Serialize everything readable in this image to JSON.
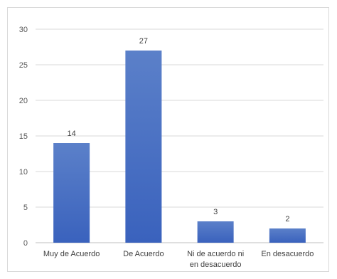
{
  "chart_data": {
    "type": "bar",
    "categories": [
      "Muy de Acuerdo",
      "De Acuerdo",
      "Ni de acuerdo ni en desacuerdo",
      "En desacuerdo"
    ],
    "category_lines": [
      [
        "Muy de Acuerdo"
      ],
      [
        "De Acuerdo"
      ],
      [
        "Ni de acuerdo ni",
        "en desacuerdo"
      ],
      [
        "En desacuerdo"
      ]
    ],
    "values": [
      14,
      27,
      3,
      2
    ],
    "title": "",
    "xlabel": "",
    "ylabel": "",
    "ylim": [
      0,
      30
    ],
    "yticks": [
      0,
      5,
      10,
      15,
      20,
      25,
      30
    ],
    "grid": true,
    "legend": "none",
    "bar_color_top": "#5b80c9",
    "bar_color_bottom": "#3a62bd",
    "data_labels": true
  }
}
